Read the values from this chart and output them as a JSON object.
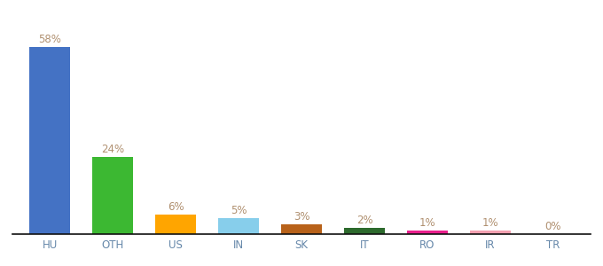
{
  "categories": [
    "HU",
    "OTH",
    "US",
    "IN",
    "SK",
    "IT",
    "RO",
    "IR",
    "TR"
  ],
  "values": [
    58,
    24,
    6,
    5,
    3,
    2,
    1,
    1,
    0
  ],
  "bar_colors": [
    "#4472c4",
    "#3cb832",
    "#ffa500",
    "#87ceeb",
    "#b8621a",
    "#2d6a2d",
    "#e91e8c",
    "#f4a0b0",
    "#cccccc"
  ],
  "label_color": "#b09070",
  "label_fontsize": 8.5,
  "xtick_color": "#6688aa",
  "xtick_fontsize": 8.5,
  "ylim": [
    0,
    66
  ],
  "background_color": "#ffffff",
  "spine_color": "#111111",
  "bar_width": 0.65
}
